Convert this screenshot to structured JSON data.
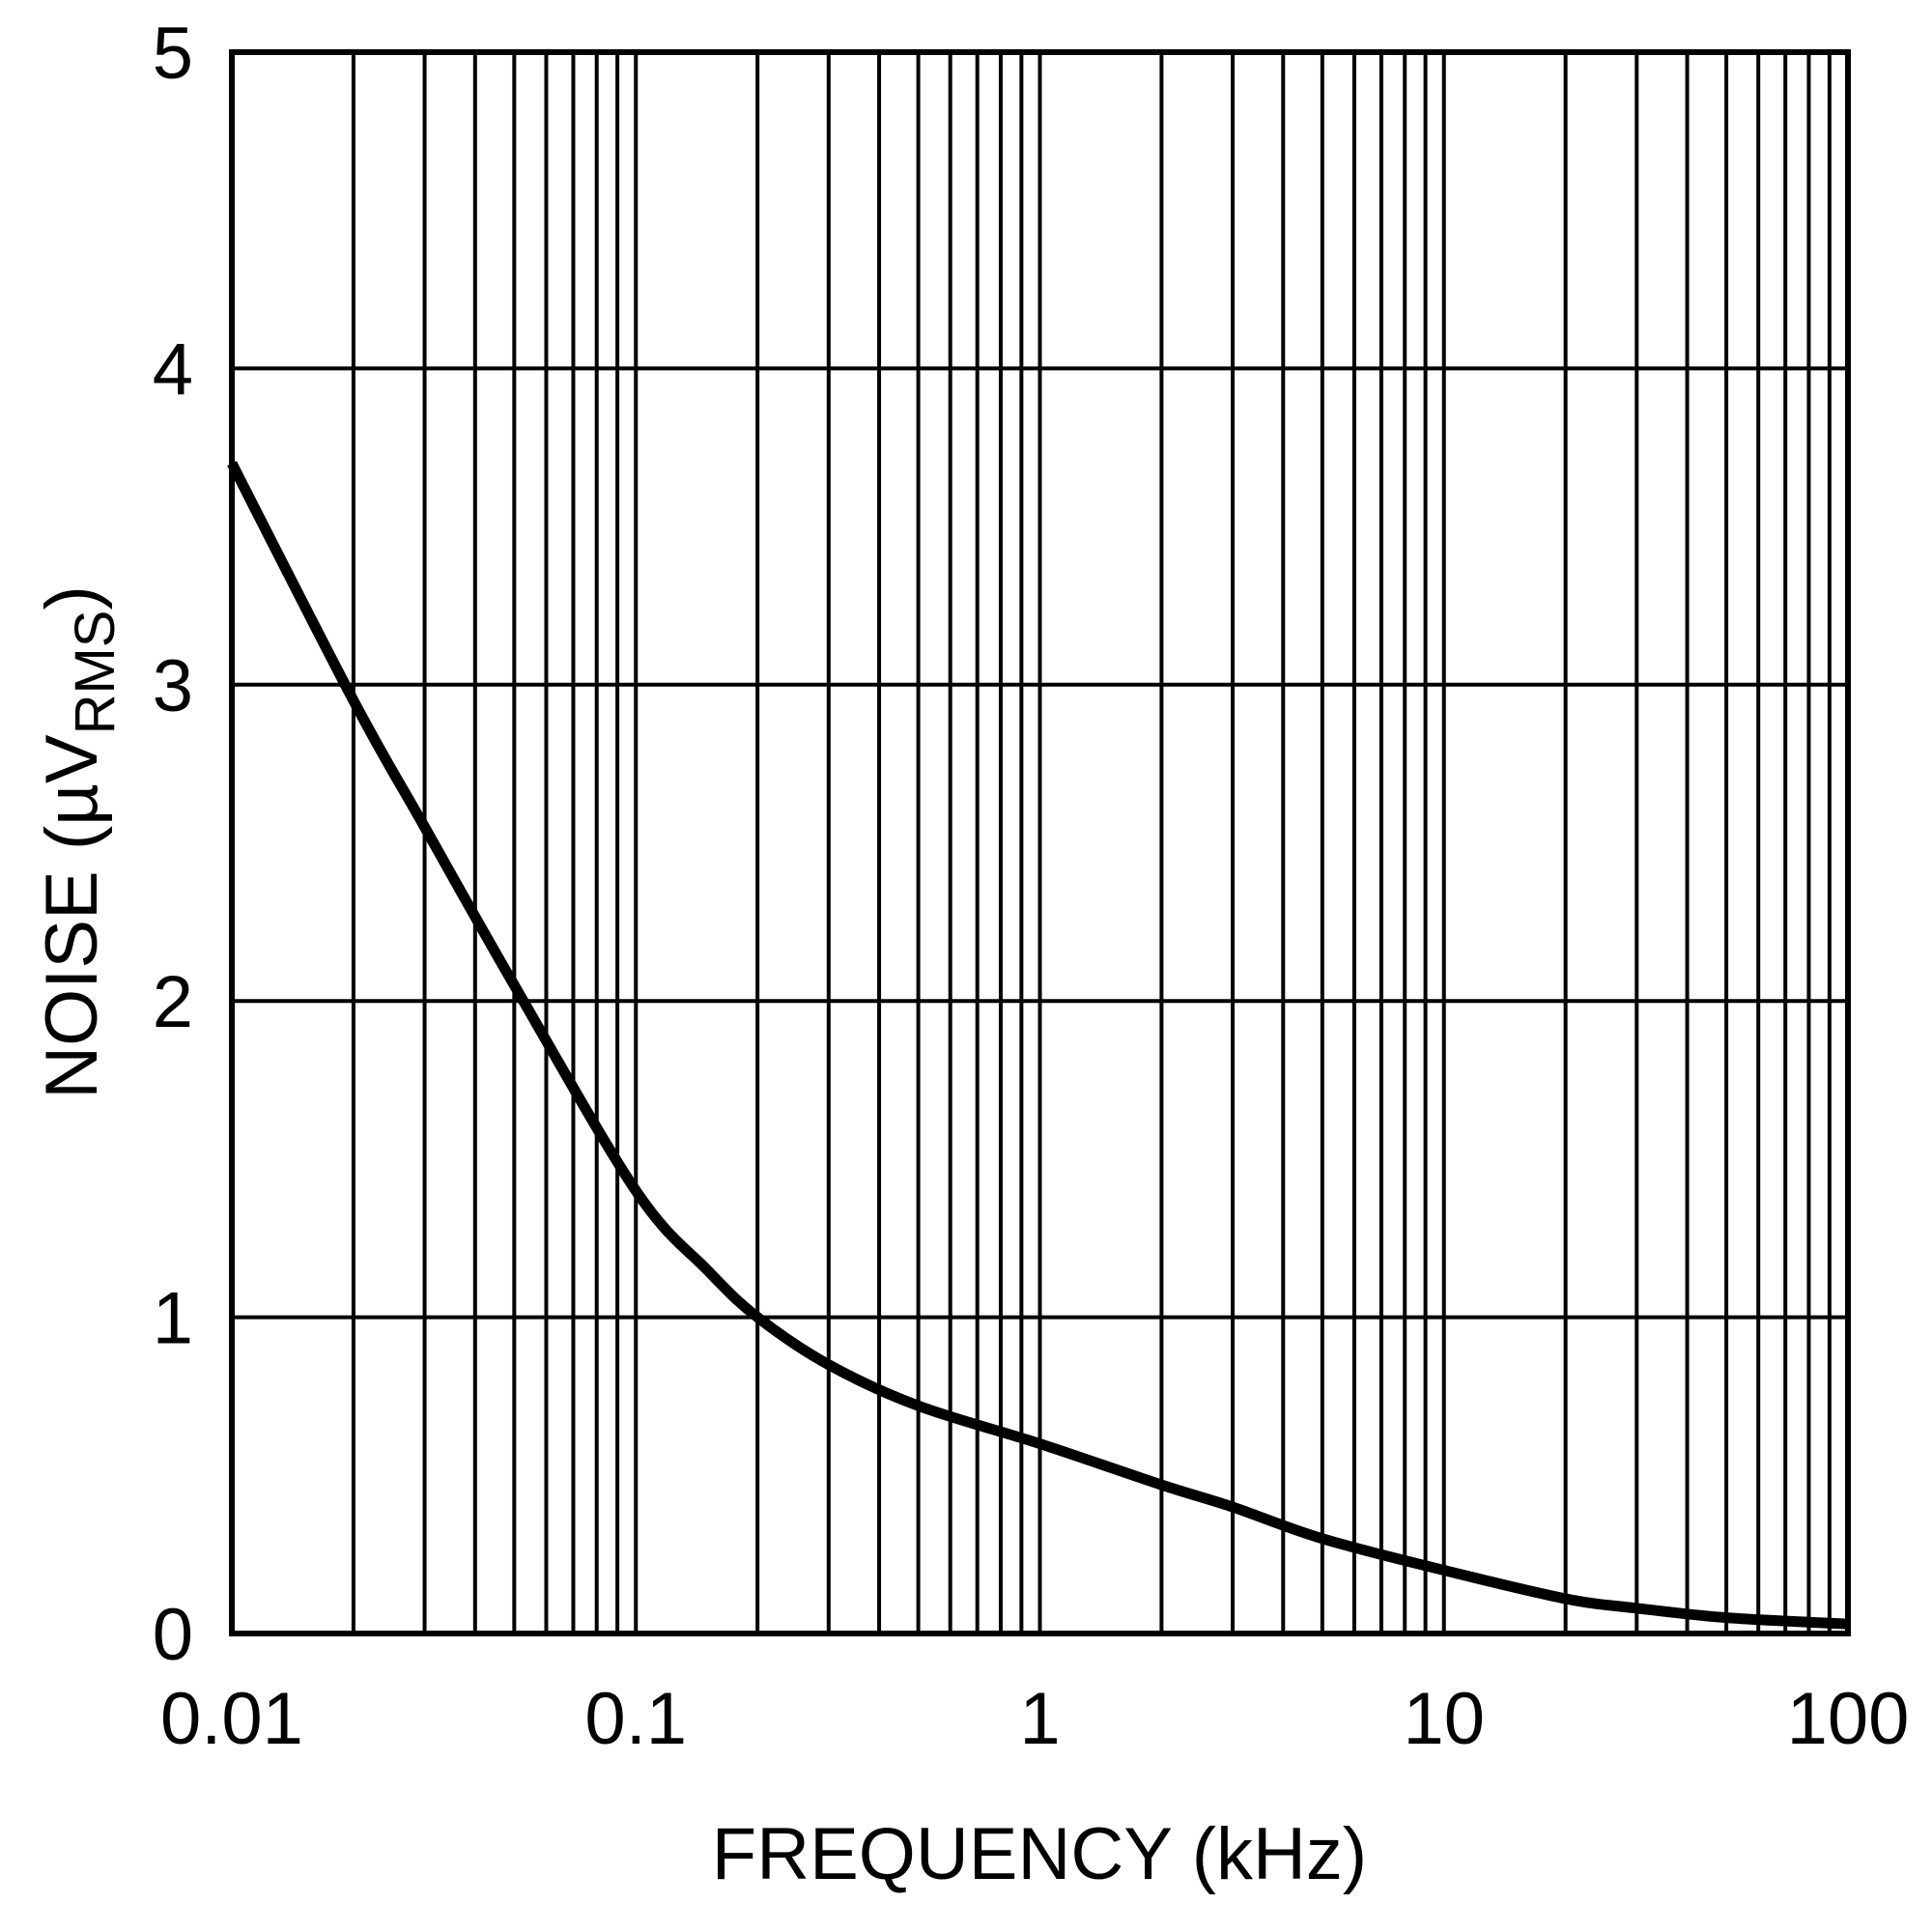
{
  "chart_data": {
    "type": "line",
    "title": "",
    "xlabel": "FREQUENCY (kHz)",
    "ylabel": "NOISE (µV",
    "ylabel_subscript": "RMS",
    "ylabel_close": ")",
    "x_scale": "log",
    "xlim": [
      0.01,
      100
    ],
    "ylim": [
      0,
      5
    ],
    "grid": true,
    "x_ticks": [
      "0.01",
      "0.1",
      "1",
      "10",
      "100"
    ],
    "y_ticks": [
      "0",
      "1",
      "2",
      "3",
      "4",
      "5"
    ],
    "line_color": "#000000",
    "series": [
      {
        "x": [
          0.01,
          0.02,
          0.03,
          0.05,
          0.1,
          0.15,
          0.2,
          0.3,
          0.5,
          1,
          2,
          3,
          5,
          10,
          20,
          30,
          50,
          100
        ],
        "y": [
          3.7,
          2.95,
          2.55,
          2.05,
          1.4,
          1.15,
          1.0,
          0.85,
          0.72,
          0.6,
          0.47,
          0.4,
          0.3,
          0.2,
          0.11,
          0.08,
          0.05,
          0.03
        ]
      }
    ]
  }
}
